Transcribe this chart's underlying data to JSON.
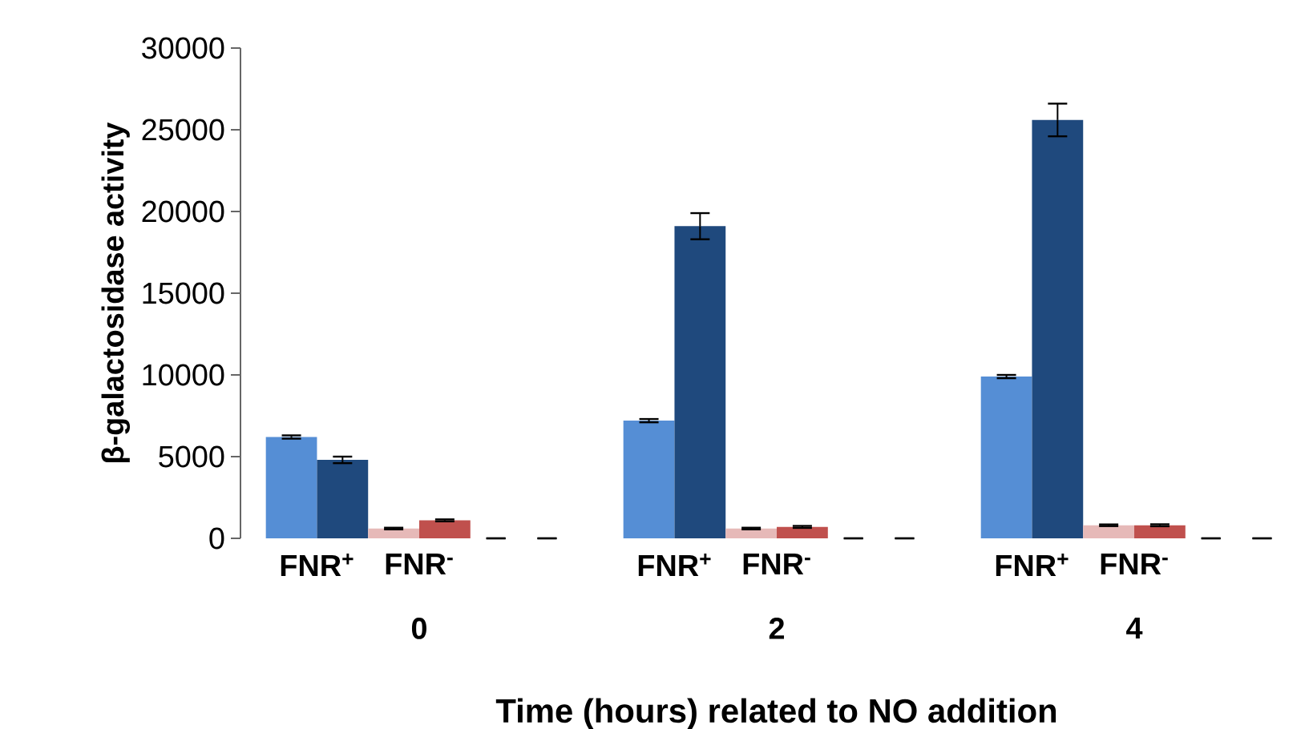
{
  "chart_data": {
    "type": "bar",
    "xlabel": "Time (hours) related to NO addition",
    "ylabel": "β-galactosidase activity",
    "categories": [
      "0",
      "2",
      "4"
    ],
    "series": [
      {
        "color": "#558ed5",
        "values": [
          6200,
          7200,
          9900
        ],
        "errors": [
          100,
          100,
          100
        ]
      },
      {
        "color": "#1f497d",
        "values": [
          4800,
          19100,
          25600
        ],
        "errors": [
          200,
          800,
          1000
        ]
      },
      {
        "color": "#e6b9b8",
        "values": [
          600,
          600,
          800
        ],
        "errors": [
          50,
          50,
          50
        ]
      },
      {
        "color": "#c0504d",
        "values": [
          1100,
          700,
          800
        ],
        "errors": [
          60,
          60,
          60
        ]
      },
      {
        "values": [
          0,
          0,
          0
        ],
        "errors": [
          0,
          0,
          0
        ]
      },
      {
        "values": [
          0,
          0,
          0
        ],
        "errors": [
          0,
          0,
          0
        ]
      }
    ],
    "annotations": [
      "FNR$^{+}$",
      "FNR$^{-}$",
      "FNR$^{+}$",
      "FNR$^{-}$",
      "FNR$^{+}$",
      "FNR$^{-}$"
    ],
    "ylim": [
      0,
      30000
    ],
    "yticks": [
      0,
      5000,
      10000,
      15000,
      20000,
      25000,
      30000
    ],
    "grid": false
  }
}
